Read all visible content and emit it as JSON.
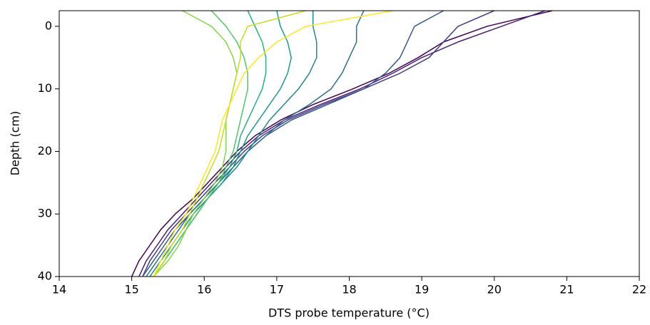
{
  "chart_data": {
    "type": "line",
    "x_label": "DTS probe temperature (°C)",
    "y_label": "Depth (cm)",
    "y": [
      -2.5,
      0,
      2.5,
      5,
      7.5,
      10,
      12.5,
      15,
      17.5,
      20,
      22.5,
      25,
      27.5,
      30,
      32.5,
      35,
      37.5,
      40
    ],
    "series": [
      {
        "color": "#440154",
        "values": [
          20.8,
          19.9,
          19.3,
          18.95,
          18.55,
          18.05,
          17.5,
          17.05,
          16.7,
          16.45,
          16.25,
          16.05,
          15.85,
          15.6,
          15.4,
          15.25,
          15.1,
          15.0
        ]
      },
      {
        "color": "#482173",
        "values": [
          20.7,
          20.1,
          19.5,
          19.0,
          18.6,
          18.15,
          17.6,
          17.1,
          16.75,
          16.5,
          16.3,
          16.1,
          15.9,
          15.7,
          15.5,
          15.35,
          15.2,
          15.1
        ]
      },
      {
        "color": "#433e85",
        "values": [
          20.0,
          19.5,
          19.3,
          19.1,
          18.7,
          18.2,
          17.65,
          17.15,
          16.8,
          16.55,
          16.35,
          16.15,
          15.95,
          15.75,
          15.55,
          15.4,
          15.25,
          15.15
        ]
      },
      {
        "color": "#38598c",
        "values": [
          19.3,
          18.9,
          18.8,
          18.7,
          18.5,
          18.2,
          17.7,
          17.2,
          16.85,
          16.6,
          16.4,
          16.2,
          16.0,
          15.8,
          15.6,
          15.45,
          15.3,
          15.15
        ]
      },
      {
        "color": "#2d708e",
        "values": [
          18.2,
          18.1,
          18.1,
          18.0,
          17.9,
          17.75,
          17.45,
          17.1,
          16.85,
          16.6,
          16.4,
          16.2,
          16.0,
          15.8,
          15.65,
          15.5,
          15.35,
          15.2
        ]
      },
      {
        "color": "#25858e",
        "values": [
          17.5,
          17.5,
          17.55,
          17.55,
          17.45,
          17.3,
          17.1,
          16.9,
          16.75,
          16.6,
          16.45,
          16.25,
          16.05,
          15.85,
          15.7,
          15.55,
          15.4,
          15.25
        ]
      },
      {
        "color": "#1e9b8a",
        "values": [
          17.0,
          17.05,
          17.15,
          17.2,
          17.15,
          17.05,
          16.9,
          16.75,
          16.6,
          16.5,
          16.4,
          16.25,
          16.05,
          15.9,
          15.75,
          15.6,
          15.45,
          15.3
        ]
      },
      {
        "color": "#2ab07f",
        "values": [
          16.6,
          16.7,
          16.8,
          16.85,
          16.85,
          16.8,
          16.7,
          16.6,
          16.5,
          16.45,
          16.35,
          16.2,
          16.05,
          15.9,
          15.75,
          15.6,
          15.45,
          15.3
        ]
      },
      {
        "color": "#52c569",
        "values": [
          16.1,
          16.3,
          16.45,
          16.55,
          16.6,
          16.6,
          16.55,
          16.5,
          16.45,
          16.4,
          16.3,
          16.2,
          16.05,
          15.9,
          15.75,
          15.6,
          15.45,
          15.3
        ]
      },
      {
        "color": "#86d549",
        "values": [
          15.7,
          16.1,
          16.3,
          16.4,
          16.45,
          16.4,
          16.35,
          16.3,
          16.3,
          16.3,
          16.25,
          16.15,
          16.0,
          15.85,
          15.75,
          15.65,
          15.5,
          15.3
        ]
      },
      {
        "color": "#c2df23",
        "values": [
          17.4,
          16.6,
          16.5,
          16.5,
          16.45,
          16.4,
          16.35,
          16.3,
          16.25,
          16.2,
          16.1,
          16.0,
          15.9,
          15.8,
          15.7,
          15.55,
          15.45,
          15.3
        ]
      },
      {
        "color": "#fde725",
        "values": [
          18.6,
          17.4,
          17.0,
          16.75,
          16.55,
          16.45,
          16.35,
          16.25,
          16.2,
          16.15,
          16.05,
          15.95,
          15.85,
          15.75,
          15.6,
          15.5,
          15.4,
          15.3
        ]
      }
    ],
    "xlim": [
      14,
      22
    ],
    "xticks": [
      14,
      15,
      16,
      17,
      18,
      19,
      20,
      21,
      22
    ],
    "ylim": [
      40,
      -2.5
    ],
    "yticks": [
      0,
      10,
      20,
      30,
      40
    ],
    "grid": false
  }
}
